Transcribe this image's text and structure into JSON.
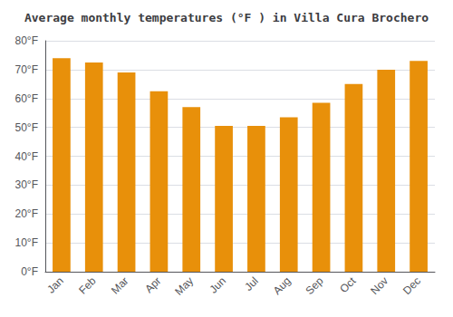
{
  "chart_data": {
    "type": "bar",
    "title": "Average monthly temperatures (°F ) in Villa Cura Brochero",
    "categories": [
      "Jan",
      "Feb",
      "Mar",
      "Apr",
      "May",
      "Jun",
      "Jul",
      "Aug",
      "Sep",
      "Oct",
      "Nov",
      "Dec"
    ],
    "values": [
      74,
      72.5,
      69,
      62.5,
      57,
      50.5,
      50.5,
      53.5,
      58.5,
      65,
      70,
      73
    ],
    "color": "#E8900A",
    "ylim": [
      0,
      80
    ],
    "yticks": [
      {
        "value": 0,
        "label": "0°F"
      },
      {
        "value": 10,
        "label": "10°F"
      },
      {
        "value": 20,
        "label": "20°F"
      },
      {
        "value": 30,
        "label": "30°F"
      },
      {
        "value": 40,
        "label": "40°F"
      },
      {
        "value": 50,
        "label": "50°F"
      },
      {
        "value": 60,
        "label": "60°F"
      },
      {
        "value": 70,
        "label": "70°F"
      },
      {
        "value": 80,
        "label": "80°F"
      }
    ],
    "grid": true
  }
}
